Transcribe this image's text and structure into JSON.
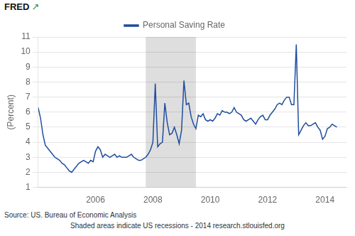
{
  "chart_data": {
    "type": "line",
    "ylabel": "(Percent)",
    "annotations": [
      "FRED",
      "↗",
      "Source: US. Bureau of Economic Analysis",
      "Shaded areas indicate US recessions - 2014 research.stlouisfed.org"
    ],
    "x": [
      2004.0,
      2004.083,
      2004.167,
      2004.25,
      2004.333,
      2004.417,
      2004.5,
      2004.583,
      2004.667,
      2004.75,
      2004.833,
      2004.917,
      2005.0,
      2005.083,
      2005.167,
      2005.25,
      2005.333,
      2005.417,
      2005.5,
      2005.583,
      2005.667,
      2005.75,
      2005.833,
      2005.917,
      2006.0,
      2006.083,
      2006.167,
      2006.25,
      2006.333,
      2006.417,
      2006.5,
      2006.583,
      2006.667,
      2006.75,
      2006.833,
      2006.917,
      2007.0,
      2007.083,
      2007.167,
      2007.25,
      2007.333,
      2007.417,
      2007.5,
      2007.583,
      2007.667,
      2007.75,
      2007.833,
      2007.917,
      2008.0,
      2008.083,
      2008.167,
      2008.25,
      2008.333,
      2008.417,
      2008.5,
      2008.583,
      2008.667,
      2008.75,
      2008.833,
      2008.917,
      2009.0,
      2009.083,
      2009.167,
      2009.25,
      2009.333,
      2009.417,
      2009.5,
      2009.583,
      2009.667,
      2009.75,
      2009.833,
      2009.917,
      2010.0,
      2010.083,
      2010.167,
      2010.25,
      2010.333,
      2010.417,
      2010.5,
      2010.583,
      2010.667,
      2010.75,
      2010.833,
      2010.917,
      2011.0,
      2011.083,
      2011.167,
      2011.25,
      2011.333,
      2011.417,
      2011.5,
      2011.583,
      2011.667,
      2011.75,
      2011.833,
      2011.917,
      2012.0,
      2012.083,
      2012.167,
      2012.25,
      2012.333,
      2012.417,
      2012.5,
      2012.583,
      2012.667,
      2012.75,
      2012.833,
      2012.917,
      2013.0,
      2013.083,
      2013.167,
      2013.25,
      2013.333,
      2013.417,
      2013.5,
      2013.583,
      2013.667,
      2013.75,
      2013.833,
      2013.917,
      2014.0,
      2014.083,
      2014.167,
      2014.25,
      2014.333,
      2014.417
    ],
    "series": [
      {
        "name": "Personal Saving Rate",
        "color": "#1f4e9e",
        "values": [
          6.3,
          5.6,
          4.5,
          3.8,
          3.6,
          3.4,
          3.2,
          3.0,
          2.9,
          2.8,
          2.6,
          2.5,
          2.3,
          2.1,
          2.0,
          2.2,
          2.4,
          2.6,
          2.7,
          2.8,
          2.7,
          2.6,
          2.8,
          2.7,
          3.4,
          3.7,
          3.5,
          3.0,
          3.2,
          3.1,
          3.0,
          3.1,
          3.2,
          3.0,
          3.1,
          3.0,
          3.0,
          3.0,
          3.1,
          3.2,
          3.0,
          2.9,
          2.8,
          2.8,
          2.9,
          3.0,
          3.2,
          3.5,
          4.0,
          7.9,
          3.7,
          3.9,
          4.0,
          6.6,
          5.3,
          4.5,
          4.6,
          5.0,
          4.5,
          3.9,
          4.8,
          8.1,
          6.5,
          6.6,
          5.7,
          5.2,
          4.9,
          5.8,
          5.7,
          5.9,
          5.5,
          5.4,
          5.5,
          5.4,
          5.6,
          5.9,
          5.8,
          6.1,
          6.0,
          6.0,
          5.9,
          6.0,
          6.3,
          6.0,
          5.9,
          5.8,
          5.5,
          5.4,
          5.5,
          5.6,
          5.4,
          5.2,
          5.5,
          5.7,
          5.8,
          5.5,
          5.5,
          5.8,
          6.0,
          6.2,
          6.5,
          6.6,
          6.5,
          6.8,
          7.0,
          7.0,
          6.5,
          6.5,
          10.5,
          4.5,
          4.8,
          5.1,
          5.3,
          5.1,
          5.1,
          5.2,
          5.3,
          5.0,
          4.8,
          4.2,
          4.4,
          4.9,
          5.0,
          5.2,
          5.1,
          5.0
        ]
      }
    ],
    "shaded_ranges": [
      {
        "start": 2007.75,
        "end": 2009.5,
        "color": "#dedede"
      }
    ],
    "xlim": [
      2004.0,
      2014.75
    ],
    "xticks": [
      2006,
      2008,
      2010,
      2012,
      2014
    ],
    "ylim": [
      1,
      11
    ],
    "yticks": [
      1,
      2,
      3,
      4,
      5,
      6,
      7,
      8,
      9,
      10,
      11
    ],
    "grid": "y",
    "legend": "top",
    "marker": "none"
  }
}
